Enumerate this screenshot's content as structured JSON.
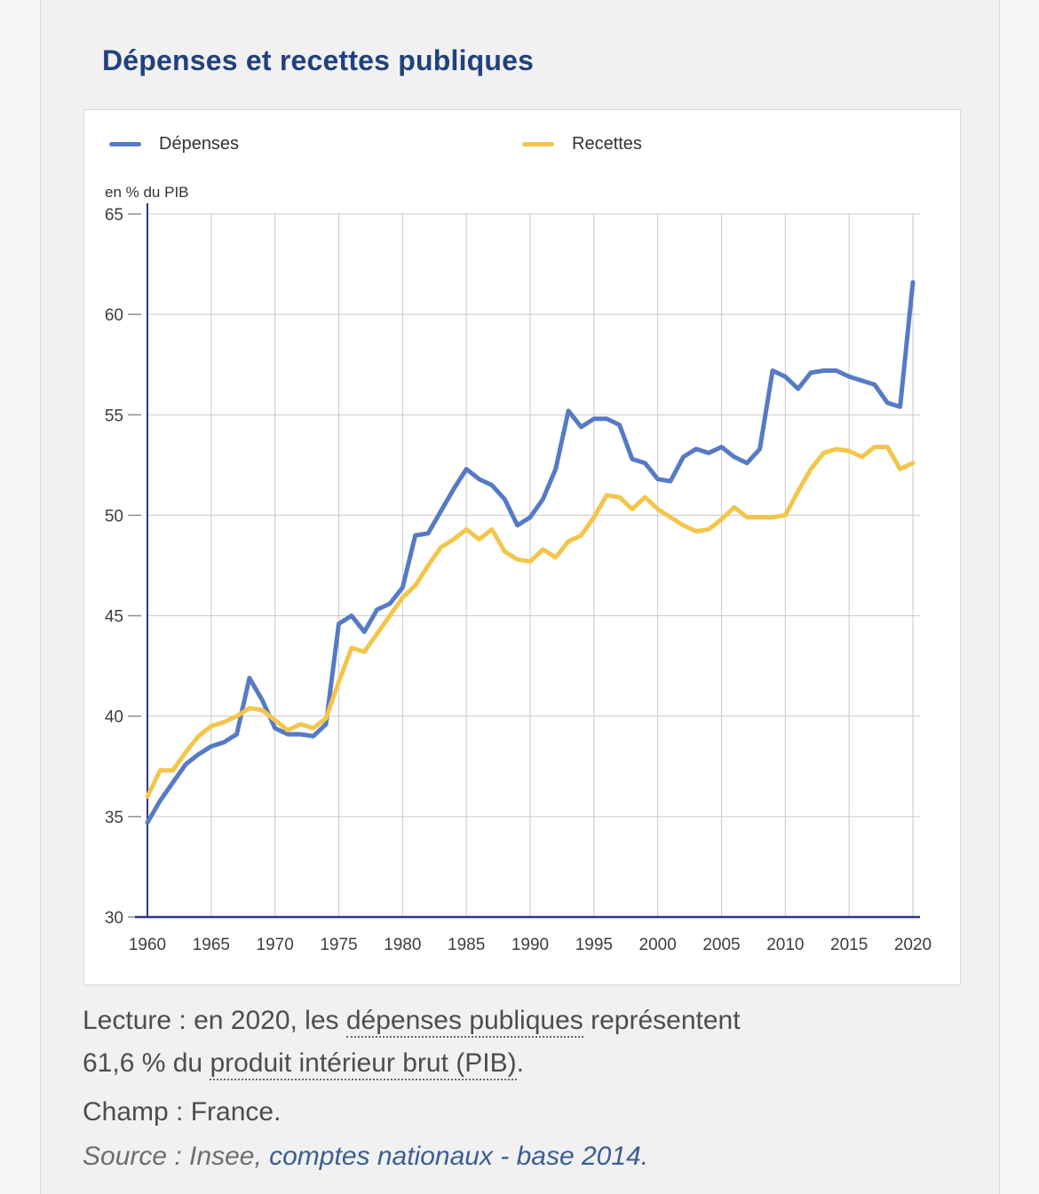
{
  "page": {
    "title": "Dépenses et recettes publiques"
  },
  "chart_data": {
    "type": "line",
    "title": "Dépenses et recettes publiques",
    "unit_label": "en % du PIB",
    "xlabel": "",
    "ylabel": "en % du PIB",
    "ylim": [
      30,
      65
    ],
    "xlim": [
      1960,
      2020
    ],
    "grid": true,
    "legend_position": "top",
    "xticks": [
      1960,
      1965,
      1970,
      1975,
      1980,
      1985,
      1990,
      1995,
      2000,
      2005,
      2010,
      2015,
      2020
    ],
    "yticks": [
      30,
      35,
      40,
      45,
      50,
      55,
      60,
      65
    ],
    "x": [
      1960,
      1961,
      1962,
      1963,
      1964,
      1965,
      1966,
      1967,
      1968,
      1969,
      1970,
      1971,
      1972,
      1973,
      1974,
      1975,
      1976,
      1977,
      1978,
      1979,
      1980,
      1981,
      1982,
      1983,
      1984,
      1985,
      1986,
      1987,
      1988,
      1989,
      1990,
      1991,
      1992,
      1993,
      1994,
      1995,
      1996,
      1997,
      1998,
      1999,
      2000,
      2001,
      2002,
      2003,
      2004,
      2005,
      2006,
      2007,
      2008,
      2009,
      2010,
      2011,
      2012,
      2013,
      2014,
      2015,
      2016,
      2017,
      2018,
      2019,
      2020
    ],
    "series": [
      {
        "name": "Dépenses",
        "color": "#567ac4",
        "values": [
          34.7,
          35.8,
          36.7,
          37.6,
          38.1,
          38.5,
          38.7,
          39.1,
          41.9,
          40.8,
          39.4,
          39.1,
          39.1,
          39.0,
          39.6,
          44.6,
          45.0,
          44.2,
          45.3,
          45.6,
          46.4,
          49.0,
          49.1,
          50.2,
          51.3,
          52.3,
          51.8,
          51.5,
          50.8,
          49.5,
          49.9,
          50.8,
          52.3,
          55.2,
          54.4,
          54.8,
          54.8,
          54.5,
          52.8,
          52.6,
          51.8,
          51.7,
          52.9,
          53.3,
          53.1,
          53.4,
          52.9,
          52.6,
          53.3,
          57.2,
          56.9,
          56.3,
          57.1,
          57.2,
          57.2,
          56.9,
          56.7,
          56.5,
          55.6,
          55.4,
          61.6
        ]
      },
      {
        "name": "Recettes",
        "color": "#f3c64b",
        "values": [
          36.0,
          37.3,
          37.3,
          38.2,
          39.0,
          39.5,
          39.7,
          40.0,
          40.4,
          40.3,
          39.8,
          39.3,
          39.6,
          39.4,
          39.9,
          41.7,
          43.4,
          43.2,
          44.1,
          45.0,
          45.9,
          46.5,
          47.5,
          48.4,
          48.8,
          49.3,
          48.8,
          49.3,
          48.2,
          47.8,
          47.7,
          48.3,
          47.9,
          48.7,
          49.0,
          49.9,
          51.0,
          50.9,
          50.3,
          50.9,
          50.3,
          49.9,
          49.5,
          49.2,
          49.3,
          49.8,
          50.4,
          49.9,
          49.9,
          49.9,
          50.0,
          51.2,
          52.3,
          53.1,
          53.3,
          53.2,
          52.9,
          53.4,
          53.4,
          52.3,
          52.6
        ]
      }
    ]
  },
  "notes": {
    "lecture_lines": [
      [
        {
          "t": "Lecture : en 2020, les "
        },
        {
          "t": "dépenses publiques",
          "u": true
        },
        {
          "t": " représentent"
        }
      ],
      [
        {
          "t": "61,6 % du "
        },
        {
          "t": "produit intérieur brut (PIB)",
          "u": true
        },
        {
          "t": "."
        }
      ]
    ],
    "champ": "Champ : France.",
    "source_prefix": "Source : Insee, ",
    "source_link": "comptes nationaux - base 2014."
  },
  "colors": {
    "title": "#21417e",
    "axis": "#2d3590",
    "grid": "#c9c9c9",
    "tick_text": "#3d3d3d",
    "depenses": "#567ac4",
    "recettes": "#f3c64b",
    "link": "#3a5e93"
  }
}
